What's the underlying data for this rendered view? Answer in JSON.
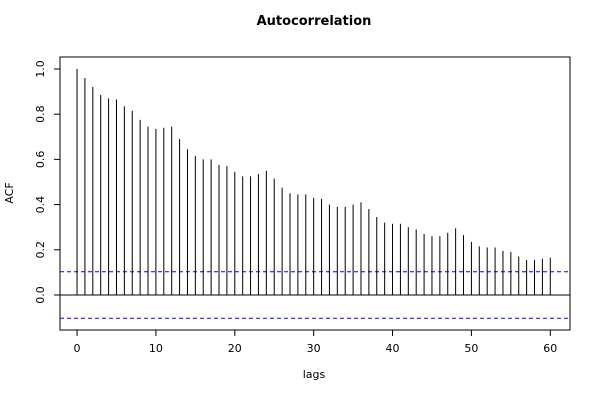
{
  "chart_data": {
    "type": "acf",
    "title": "Autocorrelation",
    "x_label": "lags",
    "y_label": "ACF",
    "x": [
      0,
      1,
      2,
      3,
      4,
      5,
      6,
      7,
      8,
      9,
      10,
      11,
      12,
      13,
      14,
      15,
      16,
      17,
      18,
      19,
      20,
      21,
      22,
      23,
      24,
      25,
      26,
      27,
      28,
      29,
      30,
      31,
      32,
      33,
      34,
      35,
      36,
      37,
      38,
      39,
      40,
      41,
      42,
      43,
      44,
      45,
      46,
      47,
      48,
      49,
      50,
      51,
      52,
      53,
      54,
      55,
      56,
      57,
      58,
      59,
      60
    ],
    "values": [
      1.0,
      0.96,
      0.92,
      0.885,
      0.87,
      0.865,
      0.835,
      0.815,
      0.775,
      0.745,
      0.735,
      0.74,
      0.745,
      0.69,
      0.645,
      0.615,
      0.6,
      0.6,
      0.575,
      0.57,
      0.545,
      0.525,
      0.525,
      0.535,
      0.55,
      0.515,
      0.475,
      0.45,
      0.445,
      0.445,
      0.43,
      0.425,
      0.4,
      0.39,
      0.39,
      0.4,
      0.41,
      0.38,
      0.345,
      0.32,
      0.315,
      0.315,
      0.3,
      0.29,
      0.27,
      0.26,
      0.26,
      0.275,
      0.295,
      0.265,
      0.235,
      0.215,
      0.21,
      0.21,
      0.195,
      0.19,
      0.17,
      0.155,
      0.155,
      0.16,
      0.165
    ],
    "color": "#000000",
    "ci_lines": [
      0.103,
      -0.103
    ],
    "ci_color": "#0000ff",
    "xlim": [
      -2.16,
      62.5
    ],
    "ylim": [
      -0.155,
      1.053
    ],
    "xticks": [
      0,
      10,
      20,
      30,
      40,
      50,
      60
    ],
    "yticks": [
      {
        "value": 0,
        "label": "0.0"
      },
      0.2,
      0.4,
      0.6,
      0.8,
      {
        "value": 1,
        "label": "1.0"
      }
    ]
  }
}
